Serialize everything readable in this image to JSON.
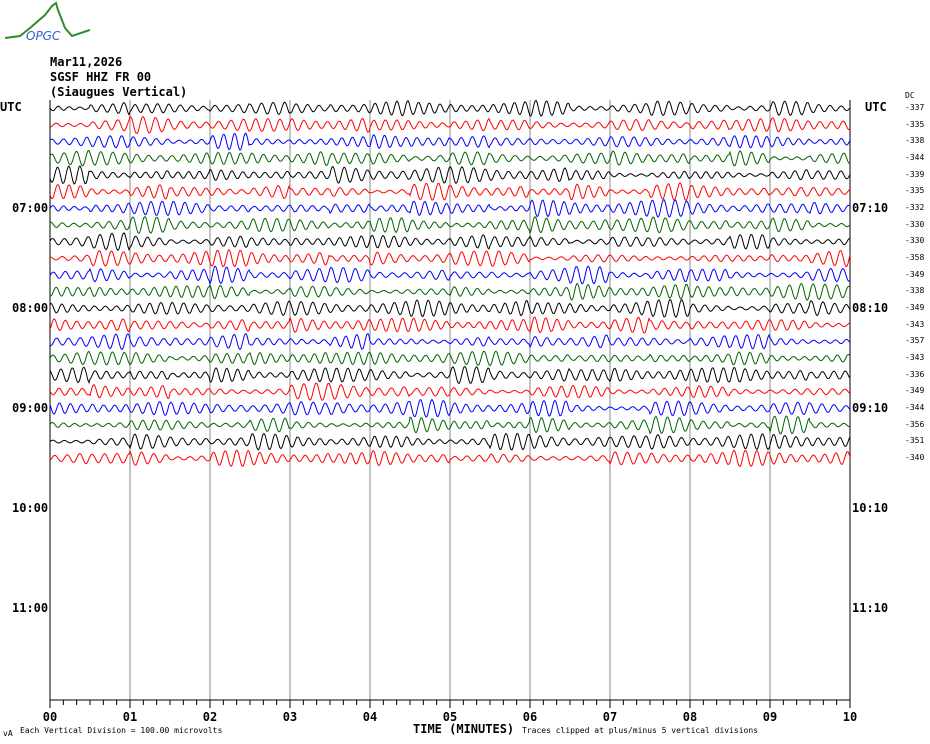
{
  "logo": {
    "text": "OPGC"
  },
  "header": {
    "date": "Mar11,2026",
    "station": "SGSF HHZ FR 00",
    "location": "(Siaugues Vertical)"
  },
  "chart_data": {
    "type": "line",
    "title": "SGSF HHZ FR 00 (Siaugues Vertical)",
    "xlabel": "TIME (MINUTES)",
    "xlim": [
      0,
      10
    ],
    "x_ticks": [
      "00",
      "01",
      "02",
      "03",
      "04",
      "05",
      "06",
      "07",
      "08",
      "09",
      "10"
    ],
    "left_axis_label": "UTC",
    "right_axis_label": "UTC",
    "left_hour_labels": [
      "07:00",
      "08:00",
      "09:00",
      "10:00",
      "11:00"
    ],
    "right_hour_labels": [
      "07:10",
      "08:10",
      "09:10",
      "10:10",
      "11:10"
    ],
    "dc_label": "DC",
    "rows_total": 36,
    "trace_colors": [
      "#000000",
      "#ff0000",
      "#0000ff",
      "#006400"
    ],
    "dc_offsets": [
      "-337",
      "-335",
      "-338",
      "-344",
      "-339",
      "-335",
      "-332",
      "-330",
      "-330",
      "-358",
      "-349",
      "-338",
      "-349",
      "-343",
      "-357",
      "-343",
      "-336",
      "-349",
      "-344",
      "-356",
      "-351",
      "-340"
    ],
    "scale_note": "Each Vertical Division =  100.00 microvolts",
    "clip_note": "Traces clipped at plus/minus 5 vertical divisions",
    "corner_mark": "vA"
  }
}
